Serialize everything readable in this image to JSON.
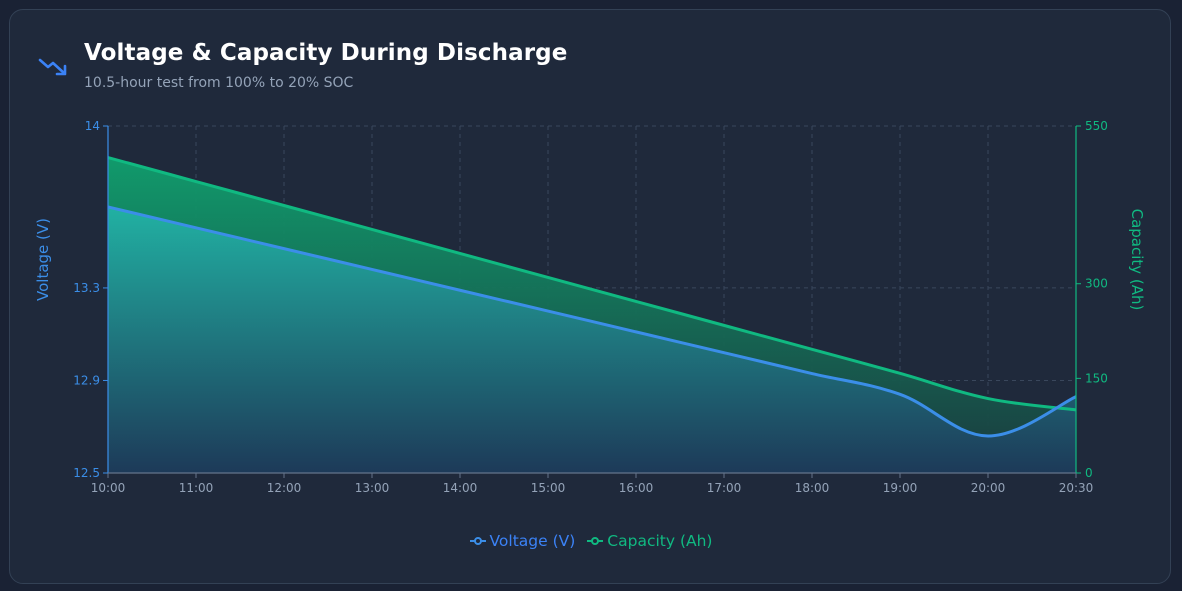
{
  "header": {
    "title": "Voltage & Capacity During Discharge",
    "subtitle": "10.5-hour test from 100% to 20% SOC",
    "icon": "trending-down-icon"
  },
  "colors": {
    "voltage": "#3b8ee8",
    "capacity": "#10b981",
    "grid": "#3a475c",
    "tick": "#94a3b8"
  },
  "chart_data": {
    "type": "line",
    "x": [
      "10:00",
      "11:00",
      "12:00",
      "13:00",
      "14:00",
      "15:00",
      "16:00",
      "17:00",
      "18:00",
      "19:00",
      "20:00",
      "20:30"
    ],
    "x_ticks": [
      "10:00",
      "11:00",
      "12:00",
      "13:00",
      "14:00",
      "15:00",
      "16:00",
      "17:00",
      "18:00",
      "19:00",
      "20:00",
      "20:30"
    ],
    "series": [
      {
        "name": "Voltage (V)",
        "axis": "left",
        "color": "#3b8ee8",
        "values": [
          13.65,
          13.56,
          13.47,
          13.38,
          13.29,
          13.2,
          13.11,
          13.02,
          12.93,
          12.84,
          12.66,
          12.83
        ]
      },
      {
        "name": "Capacity (Ah)",
        "axis": "right",
        "color": "#10b981",
        "values": [
          500,
          462,
          424,
          386,
          348,
          310,
          272,
          234,
          196,
          158,
          118,
          100
        ]
      }
    ],
    "y_left": {
      "label": "Voltage (V)",
      "min": 12.5,
      "max": 14,
      "ticks": [
        12.5,
        12.9,
        13.3,
        14
      ]
    },
    "y_right": {
      "label": "Capacity (Ah)",
      "min": 0,
      "max": 550,
      "ticks": [
        0,
        150,
        300,
        550
      ]
    },
    "grid": true,
    "legend": "bottom-center"
  }
}
